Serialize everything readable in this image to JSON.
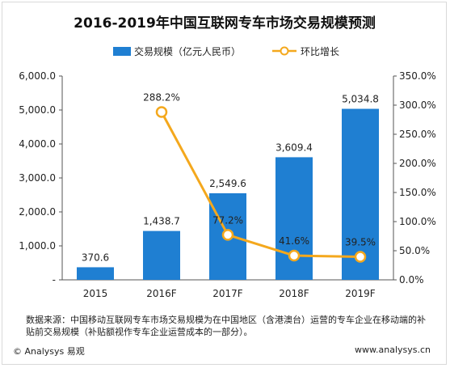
{
  "chart_data": {
    "type": "bar+line",
    "title": "2016-2019年中国互联网专车市场交易规模预测",
    "categories": [
      "2015",
      "2016F",
      "2017F",
      "2018F",
      "2019F"
    ],
    "series": [
      {
        "name": "交易规模（亿元人民币）",
        "kind": "bar",
        "axis": "left",
        "values": [
          370.6,
          1438.7,
          2549.6,
          3609.4,
          5034.8
        ],
        "labels": [
          "370.6",
          "1,438.7",
          "2,549.6",
          "3,609.4",
          "5,034.8"
        ]
      },
      {
        "name": "环比增长",
        "kind": "line",
        "axis": "right",
        "values": [
          null,
          288.2,
          77.2,
          41.6,
          39.5
        ],
        "labels": [
          "",
          "288.2%",
          "77.2%",
          "41.6%",
          "39.5%"
        ]
      }
    ],
    "y_left": {
      "range": [
        0,
        6000
      ],
      "ticks": [
        0,
        1000,
        2000,
        3000,
        4000,
        5000,
        6000
      ],
      "tick_labels": [
        "-",
        "1,000.0",
        "2,000.0",
        "3,000.0",
        "4,000.0",
        "5,000.0",
        "6,000.0"
      ]
    },
    "y_right": {
      "range": [
        0,
        350
      ],
      "ticks": [
        0,
        50,
        100,
        150,
        200,
        250,
        300,
        350
      ],
      "tick_labels": [
        "0.0%",
        "50.0%",
        "100.0%",
        "150.0%",
        "200.0%",
        "250.0%",
        "300.0%",
        "350.0%"
      ]
    },
    "grid": false,
    "legend": "top-center",
    "colors": {
      "bar": "#1f7fd2",
      "line": "#f4a81d",
      "marker_fill": "#ffffff"
    }
  },
  "note": "数据来源：中国移动互联网专车市场交易规模为在中国地区（含港澳台）运营的专车企业在移动端的补贴前交易规模（补贴额视作专车企业运营成本的一部分）。",
  "footer": {
    "left": "© Analysys 易观",
    "right": "www.analysys.cn"
  }
}
